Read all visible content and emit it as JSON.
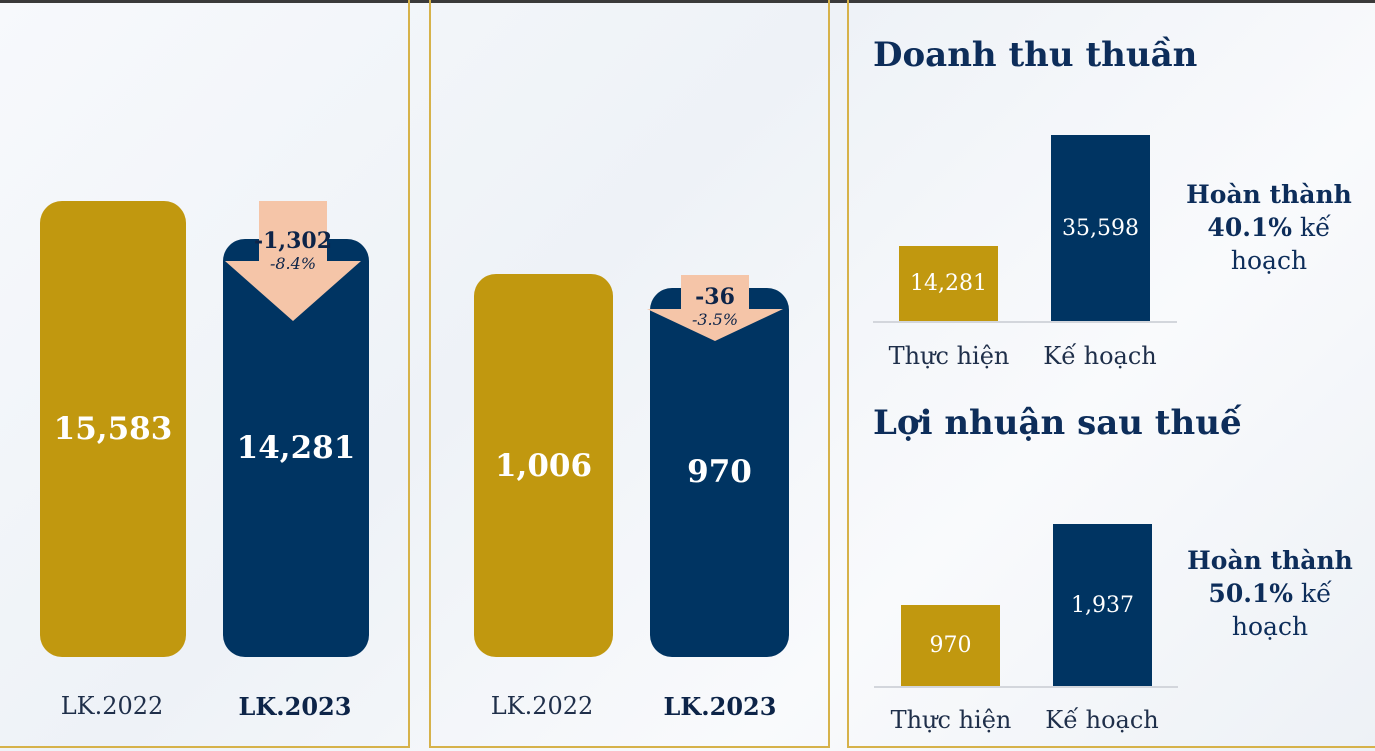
{
  "chart_data": [
    {
      "type": "bar",
      "categories": [
        "LK.2022",
        "LK.2023"
      ],
      "values": [
        15583,
        14281
      ],
      "value_labels": [
        "15,583",
        "14,281"
      ],
      "change": {
        "delta": "-1,302",
        "percent": "-8.4%"
      },
      "colors": [
        "#c1980f",
        "#003462"
      ]
    },
    {
      "type": "bar",
      "categories": [
        "LK.2022",
        "LK.2023"
      ],
      "values": [
        1006,
        970
      ],
      "value_labels": [
        "1,006",
        "970"
      ],
      "change": {
        "delta": "-36",
        "percent": "-3.5%"
      },
      "colors": [
        "#c1980f",
        "#003462"
      ]
    },
    {
      "type": "bar",
      "title": "Doanh thu thuần",
      "categories": [
        "Thực hiện",
        "Kế hoạch"
      ],
      "values": [
        14281,
        35598
      ],
      "value_labels": [
        "14,281",
        "35,598"
      ],
      "completion": {
        "prefix": "Hoàn thành",
        "percent": "40.1%",
        "suffix1": "kế",
        "suffix2": "hoạch"
      },
      "colors": [
        "#c1980f",
        "#003462"
      ]
    },
    {
      "type": "bar",
      "title": "Lợi nhuận sau thuế",
      "categories": [
        "Thực hiện",
        "Kế hoạch"
      ],
      "values": [
        970,
        1937
      ],
      "value_labels": [
        "970",
        "1,937"
      ],
      "completion": {
        "prefix": "Hoàn thành",
        "percent": "50.1%",
        "suffix1": "kế",
        "suffix2": "hoạch"
      },
      "colors": [
        "#c1980f",
        "#003462"
      ]
    }
  ]
}
